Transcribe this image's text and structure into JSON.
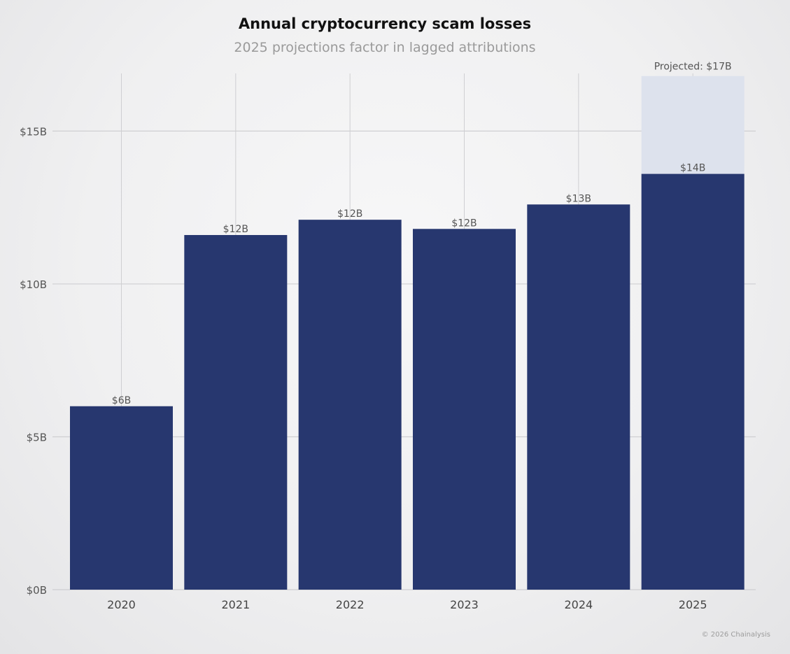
{
  "title": "Annual cryptocurrency scam losses",
  "subtitle": "2025 projections factor in lagged attributions",
  "credit": "© 2026 Chainalysis",
  "colors": {
    "bar": "#27376f",
    "projected": "#dde2ed",
    "grid": "#cfcfd2",
    "tick_text": "#555555",
    "label_text": "#555555"
  },
  "chart_data": {
    "type": "bar",
    "title": "Annual cryptocurrency scam losses",
    "subtitle": "2025 projections factor in lagged attributions",
    "xlabel": "",
    "ylabel": "",
    "categories": [
      "2020",
      "2021",
      "2022",
      "2023",
      "2024",
      "2025"
    ],
    "values": [
      6.0,
      11.6,
      12.1,
      11.8,
      12.6,
      13.6
    ],
    "value_labels": [
      "$6B",
      "$12B",
      "$12B",
      "$12B",
      "$13B",
      "$14B"
    ],
    "projected": {
      "category": "2025",
      "value": 16.8,
      "label": "Projected: $17B"
    },
    "ylim": [
      0,
      17
    ],
    "yticks": [
      0,
      5,
      10,
      15
    ],
    "ytick_labels": [
      "$0B",
      "$5B",
      "$10B",
      "$15B"
    ],
    "grid": true,
    "legend": "none"
  }
}
